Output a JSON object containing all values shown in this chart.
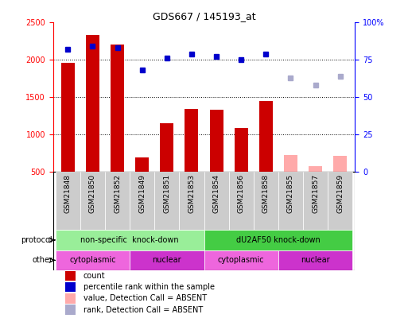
{
  "title": "GDS667 / 145193_at",
  "samples": [
    "GSM21848",
    "GSM21850",
    "GSM21852",
    "GSM21849",
    "GSM21851",
    "GSM21853",
    "GSM21854",
    "GSM21856",
    "GSM21858",
    "GSM21855",
    "GSM21857",
    "GSM21859"
  ],
  "bar_values": [
    1960,
    2330,
    2210,
    690,
    1150,
    1340,
    1330,
    1080,
    1450,
    null,
    null,
    null
  ],
  "bar_values_absent": [
    null,
    null,
    null,
    null,
    null,
    null,
    null,
    null,
    null,
    720,
    570,
    710
  ],
  "rank_values": [
    82,
    84,
    83,
    68,
    76,
    79,
    77,
    75,
    79,
    null,
    null,
    null
  ],
  "rank_values_absent": [
    null,
    null,
    null,
    null,
    null,
    null,
    null,
    null,
    null,
    63,
    58,
    64
  ],
  "ylim_left": [
    500,
    2500
  ],
  "ylim_right": [
    0,
    100
  ],
  "yticks_left": [
    500,
    1000,
    1500,
    2000,
    2500
  ],
  "yticks_right": [
    0,
    25,
    50,
    75,
    100
  ],
  "ytick_labels_right": [
    "0",
    "25",
    "50",
    "75",
    "100%"
  ],
  "bar_color": "#cc0000",
  "bar_absent_color": "#ffaaaa",
  "rank_color": "#0000cc",
  "rank_absent_color": "#aaaacc",
  "protocol_groups": [
    {
      "label": "non-specific  knock-down",
      "start": 0,
      "end": 6,
      "color": "#99ee99"
    },
    {
      "label": "dU2AF50 knock-down",
      "start": 6,
      "end": 12,
      "color": "#44cc44"
    }
  ],
  "other_groups": [
    {
      "label": "cytoplasmic",
      "start": 0,
      "end": 3,
      "color": "#ee66dd"
    },
    {
      "label": "nuclear",
      "start": 3,
      "end": 6,
      "color": "#cc33cc"
    },
    {
      "label": "cytoplasmic",
      "start": 6,
      "end": 9,
      "color": "#ee66dd"
    },
    {
      "label": "nuclear",
      "start": 9,
      "end": 12,
      "color": "#cc33cc"
    }
  ],
  "protocol_label": "protocol",
  "other_label": "other",
  "legend_items": [
    {
      "label": "count",
      "color": "#cc0000"
    },
    {
      "label": "percentile rank within the sample",
      "color": "#0000cc"
    },
    {
      "label": "value, Detection Call = ABSENT",
      "color": "#ffaaaa"
    },
    {
      "label": "rank, Detection Call = ABSENT",
      "color": "#aaaacc"
    }
  ],
  "dotted_gridlines": [
    1000,
    1500,
    2000
  ],
  "background_color": "#ffffff",
  "tick_bg_color": "#cccccc"
}
